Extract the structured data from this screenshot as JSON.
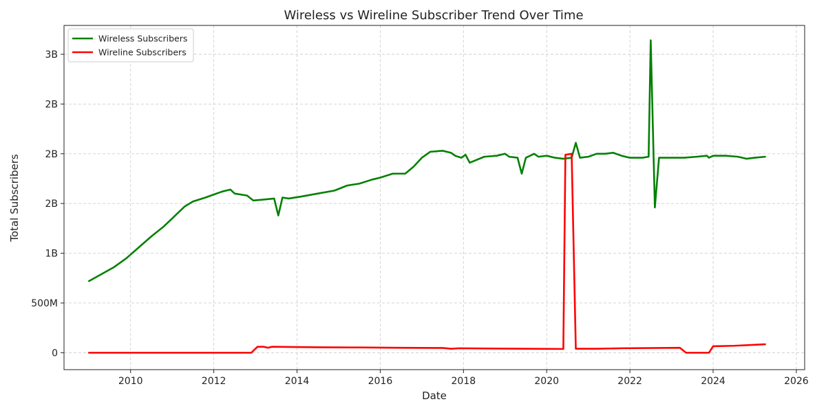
{
  "chart_data": {
    "type": "line",
    "title": "Wireless vs Wireline Subscriber Trend Over Time",
    "xlabel": "Date",
    "ylabel": "Total Subscribers",
    "xlim": [
      2008.4,
      2026.2
    ],
    "ylim": [
      -0.17,
      3.29
    ],
    "x_ticks": [
      2010,
      2012,
      2014,
      2016,
      2018,
      2020,
      2022,
      2024,
      2026
    ],
    "x_tick_labels": [
      "2010",
      "2012",
      "2014",
      "2016",
      "2018",
      "2020",
      "2022",
      "2024",
      "2026"
    ],
    "y_ticks": [
      0,
      0.5,
      1.0,
      1.5,
      2.0,
      2.5,
      3.0
    ],
    "y_tick_labels": [
      "0",
      "500M",
      "1B",
      "2B",
      "2B",
      "2B",
      "3B"
    ],
    "y_unit": "billions",
    "grid": true,
    "legend_position": "top-left",
    "series": [
      {
        "name": "Wireless Subscribers",
        "color": "#008000",
        "points": [
          [
            2009.0,
            0.72
          ],
          [
            2009.3,
            0.79
          ],
          [
            2009.6,
            0.86
          ],
          [
            2009.9,
            0.95
          ],
          [
            2010.2,
            1.06
          ],
          [
            2010.5,
            1.17
          ],
          [
            2010.8,
            1.27
          ],
          [
            2011.1,
            1.39
          ],
          [
            2011.3,
            1.47
          ],
          [
            2011.5,
            1.52
          ],
          [
            2011.8,
            1.56
          ],
          [
            2012.0,
            1.59
          ],
          [
            2012.2,
            1.62
          ],
          [
            2012.4,
            1.64
          ],
          [
            2012.5,
            1.6
          ],
          [
            2012.8,
            1.58
          ],
          [
            2012.95,
            1.53
          ],
          [
            2013.2,
            1.54
          ],
          [
            2013.45,
            1.55
          ],
          [
            2013.55,
            1.38
          ],
          [
            2013.65,
            1.56
          ],
          [
            2013.8,
            1.55
          ],
          [
            2014.1,
            1.57
          ],
          [
            2014.5,
            1.6
          ],
          [
            2014.9,
            1.63
          ],
          [
            2015.2,
            1.68
          ],
          [
            2015.5,
            1.7
          ],
          [
            2015.8,
            1.74
          ],
          [
            2016.0,
            1.76
          ],
          [
            2016.3,
            1.8
          ],
          [
            2016.6,
            1.8
          ],
          [
            2016.8,
            1.87
          ],
          [
            2017.0,
            1.96
          ],
          [
            2017.2,
            2.02
          ],
          [
            2017.5,
            2.03
          ],
          [
            2017.7,
            2.01
          ],
          [
            2017.8,
            1.98
          ],
          [
            2017.95,
            1.96
          ],
          [
            2018.05,
            1.99
          ],
          [
            2018.15,
            1.91
          ],
          [
            2018.5,
            1.97
          ],
          [
            2018.8,
            1.98
          ],
          [
            2019.0,
            2.0
          ],
          [
            2019.1,
            1.97
          ],
          [
            2019.3,
            1.96
          ],
          [
            2019.4,
            1.8
          ],
          [
            2019.5,
            1.96
          ],
          [
            2019.7,
            2.0
          ],
          [
            2019.8,
            1.97
          ],
          [
            2020.0,
            1.98
          ],
          [
            2020.2,
            1.96
          ],
          [
            2020.4,
            1.95
          ],
          [
            2020.6,
            1.96
          ],
          [
            2020.7,
            2.11
          ],
          [
            2020.8,
            1.96
          ],
          [
            2021.0,
            1.97
          ],
          [
            2021.2,
            2.0
          ],
          [
            2021.4,
            2.0
          ],
          [
            2021.6,
            2.01
          ],
          [
            2021.8,
            1.98
          ],
          [
            2022.0,
            1.96
          ],
          [
            2022.3,
            1.96
          ],
          [
            2022.45,
            1.97
          ],
          [
            2022.5,
            3.14
          ],
          [
            2022.6,
            1.46
          ],
          [
            2022.7,
            1.96
          ],
          [
            2023.0,
            1.96
          ],
          [
            2023.3,
            1.96
          ],
          [
            2023.6,
            1.97
          ],
          [
            2023.85,
            1.98
          ],
          [
            2023.9,
            1.96
          ],
          [
            2024.0,
            1.98
          ],
          [
            2024.3,
            1.98
          ],
          [
            2024.6,
            1.97
          ],
          [
            2024.8,
            1.95
          ],
          [
            2025.0,
            1.96
          ],
          [
            2025.25,
            1.97
          ]
        ]
      },
      {
        "name": "Wireline Subscribers",
        "color": "#ff0000",
        "points": [
          [
            2009.0,
            0.0
          ],
          [
            2012.9,
            0.0
          ],
          [
            2013.05,
            0.06
          ],
          [
            2013.2,
            0.06
          ],
          [
            2013.3,
            0.05
          ],
          [
            2013.4,
            0.06
          ],
          [
            2014.5,
            0.055
          ],
          [
            2015.5,
            0.053
          ],
          [
            2016.5,
            0.05
          ],
          [
            2017.5,
            0.048
          ],
          [
            2017.7,
            0.04
          ],
          [
            2017.9,
            0.045
          ],
          [
            2018.5,
            0.043
          ],
          [
            2019.5,
            0.04
          ],
          [
            2020.4,
            0.038
          ],
          [
            2020.45,
            1.99
          ],
          [
            2020.6,
            2.0
          ],
          [
            2020.7,
            0.04
          ],
          [
            2021.2,
            0.04
          ],
          [
            2021.8,
            0.045
          ],
          [
            2023.2,
            0.05
          ],
          [
            2023.35,
            0.0
          ],
          [
            2023.9,
            0.0
          ],
          [
            2024.0,
            0.065
          ],
          [
            2024.5,
            0.07
          ],
          [
            2025.0,
            0.08
          ],
          [
            2025.25,
            0.085
          ]
        ]
      }
    ]
  }
}
